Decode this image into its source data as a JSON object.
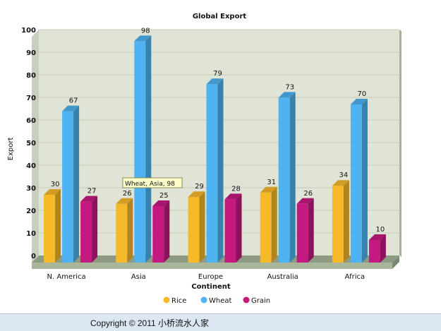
{
  "chart_data": {
    "type": "bar",
    "title": "Global Export",
    "xlabel": "Continent",
    "ylabel": "Export",
    "categories": [
      "N. America",
      "Asia",
      "Europe",
      "Australia",
      "Africa"
    ],
    "series": [
      {
        "name": "Rice",
        "values": [
          30,
          26,
          29,
          31,
          34
        ],
        "color": "#f6b92a"
      },
      {
        "name": "Wheat",
        "values": [
          67,
          98,
          79,
          73,
          70
        ],
        "color": "#4eb3f0"
      },
      {
        "name": "Grain",
        "values": [
          27,
          25,
          28,
          26,
          10
        ],
        "color": "#c4197f"
      }
    ],
    "ylim": [
      0,
      100
    ],
    "yticks": [
      0,
      10,
      20,
      30,
      40,
      50,
      60,
      70,
      80,
      90,
      100
    ],
    "grid": true,
    "legend_position": "bottom",
    "background": "#dfe4d6",
    "tooltip": "Wheat, Asia, 98"
  },
  "footer": {
    "copyright": "Copyright © 2011 小桥流水人家"
  }
}
